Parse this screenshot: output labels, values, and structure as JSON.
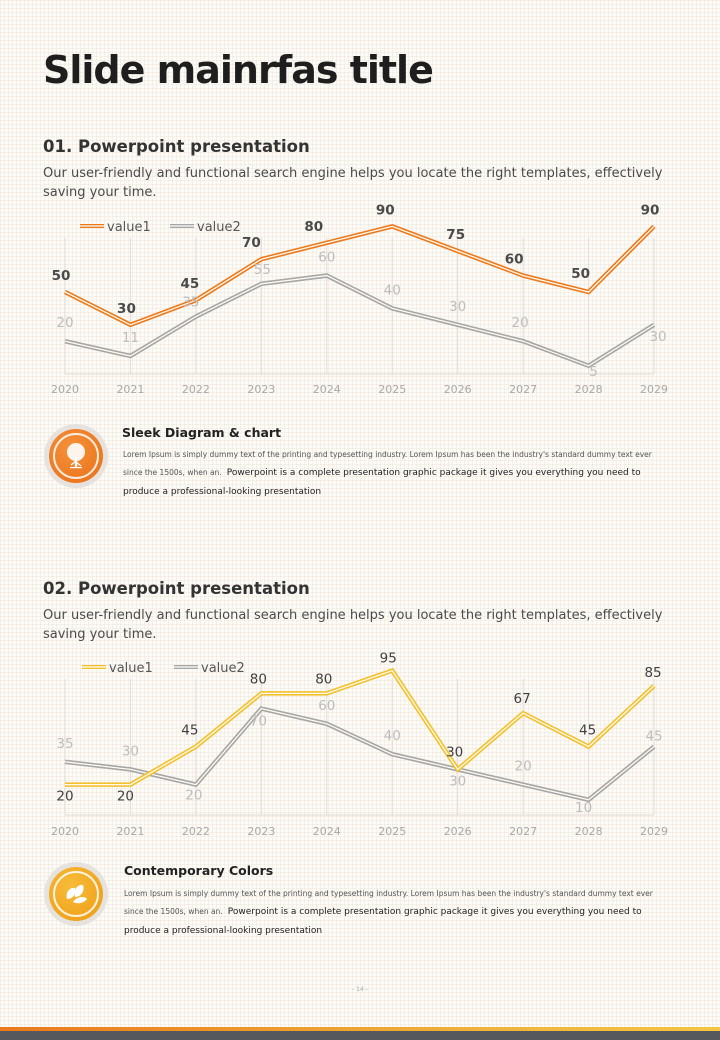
{
  "title": "Slide mainrfas title",
  "sections": [
    {
      "heading": "01. Powerpoint presentation",
      "description": "Our user-friendly and functional search engine helps you locate the right templates, effectively saving your time.",
      "feature": {
        "icon": "tree-icon",
        "title": "Sleek Diagram & chart",
        "text_small": "Lorem Ipsum is simply dummy text of the printing and typesetting industry. Lorem Ipsum has been the industry's standard dummy text ever since the 1500s, when an.",
        "text_large": "Powerpoint is a complete presentation graphic package it gives you everything you need to produce a professional-looking presentation",
        "color": "#ee7d22"
      }
    },
    {
      "heading": "02. Powerpoint presentation",
      "description": "Our user-friendly and functional search engine helps you locate the right templates, effectively saving your time.",
      "feature": {
        "icon": "leaves-icon",
        "title": "Contemporary Colors",
        "text_small": "Lorem Ipsum is simply dummy text of the printing and typesetting industry. Lorem Ipsum has been the industry's standard dummy text ever since the 1500s, when an.",
        "text_large": "Powerpoint is a complete presentation graphic package it gives you everything you need to produce a professional-looking presentation",
        "color": "#f2a81d"
      }
    }
  ],
  "chart_data": [
    {
      "type": "line",
      "title": "",
      "xlabel": "",
      "ylabel": "",
      "categories": [
        "2020",
        "2021",
        "2022",
        "2023",
        "2024",
        "2025",
        "2026",
        "2027",
        "2028",
        "2029"
      ],
      "series": [
        {
          "name": "value1",
          "values": [
            50,
            30,
            45,
            70,
            80,
            90,
            75,
            60,
            50,
            90
          ],
          "color": "#ec7a1c",
          "label_color": "#4a4a4a",
          "label_bold": true
        },
        {
          "name": "value2",
          "values": [
            20,
            11,
            35,
            55,
            60,
            40,
            30,
            20,
            5,
            30
          ],
          "color": "#a6a6a6",
          "label_color": "#bdbdbd",
          "label_bold": false
        }
      ],
      "ylim": [
        0,
        100
      ],
      "grid": "vertical",
      "legend": "top-left"
    },
    {
      "type": "line",
      "title": "",
      "xlabel": "",
      "ylabel": "",
      "categories": [
        "2020",
        "2021",
        "2022",
        "2023",
        "2024",
        "2025",
        "2026",
        "2027",
        "2028",
        "2029"
      ],
      "series": [
        {
          "name": "value1",
          "values": [
            20,
            20,
            45,
            80,
            80,
            95,
            30,
            67,
            45,
            85
          ],
          "color": "#f2c12e",
          "label_color": "#404040",
          "label_bold": false
        },
        {
          "name": "value2",
          "values": [
            35,
            30,
            20,
            70,
            60,
            40,
            30,
            20,
            10,
            45
          ],
          "color": "#a6a6a6",
          "label_color": "#bdbdbd",
          "label_bold": false
        }
      ],
      "ylim": [
        0,
        100
      ],
      "grid": "vertical",
      "legend": "top-left"
    }
  ],
  "page_number": "- 14 -"
}
